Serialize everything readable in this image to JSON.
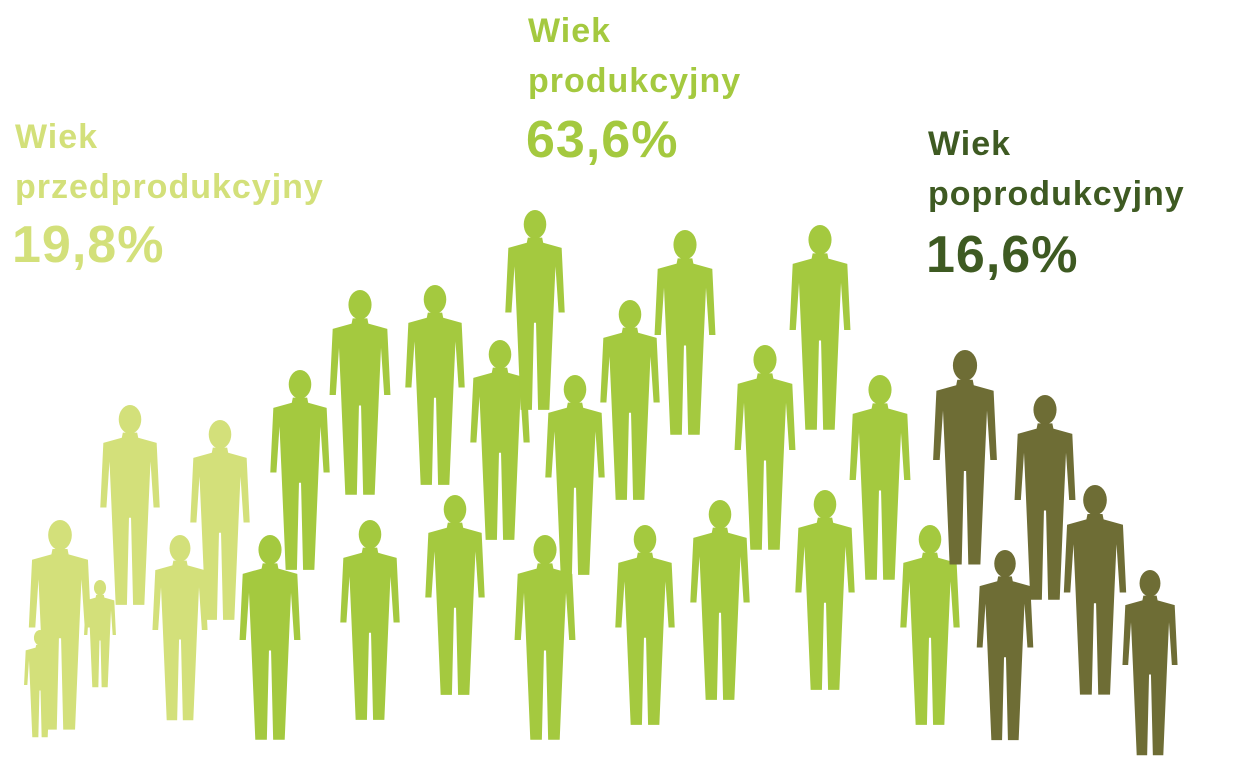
{
  "groups": [
    {
      "lines": [
        "Wiek",
        "przedprodukcyjny"
      ],
      "value": "19,8%"
    },
    {
      "lines": [
        "Wiek",
        "produkcyjny"
      ],
      "value": "63,6%"
    },
    {
      "lines": [
        "Wiek",
        "poprodukcyjny"
      ],
      "value": "16,6%"
    }
  ]
}
